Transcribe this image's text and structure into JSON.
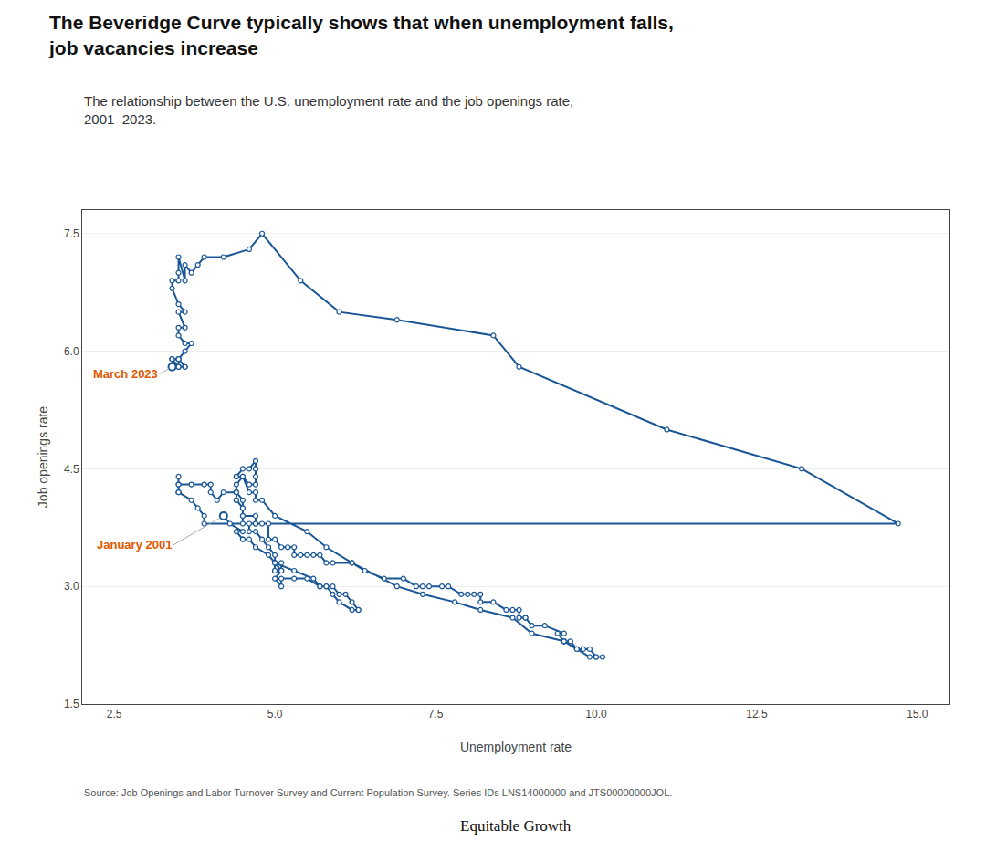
{
  "chart_data": {
    "type": "line",
    "title": "The Beveridge Curve typically shows that when unemployment falls,\njob vacancies increase",
    "subtitle": "The relationship between the U.S. unemployment rate and the job openings rate,\n2001–2023.",
    "xlabel": "Unemployment rate",
    "ylabel": "Job openings rate",
    "source": "Source: Job Openings and Labor Turnover Survey and Current Population Survey. Series IDs LNS14000000 and JTS00000000JOL.",
    "credit": "Equitable Growth",
    "color": "#1a5696",
    "marker": "circle-open",
    "line_style": "solid",
    "grid": "y",
    "xlim": [
      2.0,
      15.5
    ],
    "ylim": [
      1.5,
      7.8
    ],
    "xticks": [
      2.5,
      {
        "value": 5.0,
        "label": "5.0"
      },
      7.5,
      {
        "value": 10.0,
        "label": "10.0"
      },
      12.5,
      {
        "value": 15.0,
        "label": "15.0"
      }
    ],
    "yticks": [
      1.5,
      {
        "value": 3.0,
        "label": "3.0"
      },
      4.5,
      {
        "value": 6.0,
        "label": "6.0"
      },
      7.5
    ],
    "annotations": [
      {
        "text": "March 2023",
        "x": 3.4,
        "y": 5.8,
        "color": "#e05a00"
      },
      {
        "text": "January 2001",
        "x": 4.2,
        "y": 3.9,
        "color": "#e05a00"
      }
    ],
    "x": [
      4.2,
      4.3,
      4.5,
      4.4,
      4.5,
      4.5,
      4.6,
      4.7,
      4.9,
      5.0,
      5.3,
      5.6,
      5.7,
      5.8,
      5.9,
      6.0,
      6.1,
      6.2,
      6.3,
      6.3,
      6.2,
      6.0,
      5.9,
      5.8,
      5.7,
      5.5,
      5.3,
      5.1,
      5.1,
      5.0,
      5.1,
      5.0,
      5.0,
      5.0,
      5.1,
      5.1,
      5.1,
      5.0,
      5.0,
      4.9,
      4.8,
      4.7,
      4.6,
      4.6,
      4.5,
      4.5,
      4.5,
      4.4,
      4.4,
      4.4,
      4.4,
      4.4,
      4.5,
      4.6,
      4.7,
      4.7,
      4.7,
      4.7,
      4.7,
      4.6,
      4.5,
      4.4,
      4.4,
      4.5,
      4.6,
      4.7,
      4.7,
      4.8,
      5.0,
      5.5,
      5.8,
      6.2,
      6.9,
      7.3,
      7.8,
      8.2,
      8.7,
      9.0,
      9.5,
      9.7,
      9.7,
      9.9,
      10.0,
      10.1,
      10.0,
      9.9,
      9.8,
      9.7,
      9.6,
      9.5,
      9.5,
      9.5,
      9.4,
      9.5,
      9.2,
      9.0,
      8.9,
      8.9,
      8.8,
      8.8,
      8.7,
      8.6,
      8.4,
      8.2,
      8.2,
      8.1,
      8.0,
      7.9,
      7.7,
      7.6,
      7.4,
      7.3,
      7.2,
      7.0,
      6.7,
      6.4,
      6.2,
      5.9,
      5.8,
      5.7,
      5.6,
      5.5,
      5.4,
      5.3,
      5.3,
      5.2,
      5.1,
      5.0,
      4.9,
      4.9,
      4.8,
      4.7,
      4.7,
      4.7,
      4.5,
      4.5,
      4.5,
      4.4,
      4.2,
      4.1,
      4.0,
      4.0,
      3.9,
      3.7,
      3.5,
      3.5,
      3.5,
      3.5,
      3.5,
      3.5,
      3.7,
      3.8,
      3.9,
      3.9,
      14.7,
      13.2,
      11.1,
      8.8,
      8.4,
      6.9,
      6.0,
      5.4,
      4.8,
      4.6,
      4.2,
      3.9,
      3.8,
      3.7,
      3.6,
      3.6,
      3.5,
      3.5,
      3.5,
      3.4,
      3.4,
      3.5,
      3.6,
      3.5,
      3.6,
      3.5,
      3.5,
      3.6,
      3.7,
      3.6,
      3.5,
      3.4,
      3.4,
      3.5,
      3.5,
      3.4,
      3.5,
      3.5,
      3.6,
      3.4,
      3.4,
      3.5,
      3.6,
      3.5,
      3.4
    ],
    "values": [
      3.9,
      3.8,
      3.7,
      3.7,
      3.6,
      3.6,
      3.6,
      3.5,
      3.4,
      3.3,
      3.2,
      3.1,
      3.0,
      3.0,
      3.0,
      2.9,
      2.9,
      2.8,
      2.7,
      2.7,
      2.7,
      2.8,
      2.9,
      3.0,
      3.0,
      3.1,
      3.1,
      3.1,
      3.0,
      3.1,
      3.2,
      3.2,
      3.2,
      3.3,
      3.3,
      3.2,
      3.2,
      3.3,
      3.4,
      3.5,
      3.6,
      3.7,
      3.7,
      3.8,
      3.8,
      3.9,
      4.0,
      4.1,
      4.1,
      4.2,
      4.2,
      4.3,
      4.4,
      4.3,
      4.3,
      4.4,
      4.5,
      4.5,
      4.6,
      4.5,
      4.5,
      4.4,
      4.4,
      4.4,
      4.2,
      4.2,
      4.1,
      4.1,
      3.9,
      3.7,
      3.5,
      3.3,
      3.0,
      2.9,
      2.8,
      2.7,
      2.6,
      2.4,
      2.3,
      2.2,
      2.2,
      2.1,
      2.1,
      2.1,
      2.1,
      2.2,
      2.2,
      2.2,
      2.3,
      2.3,
      2.3,
      2.3,
      2.4,
      2.4,
      2.5,
      2.5,
      2.6,
      2.6,
      2.6,
      2.7,
      2.7,
      2.7,
      2.8,
      2.8,
      2.9,
      2.9,
      2.9,
      2.9,
      3.0,
      3.0,
      3.0,
      3.0,
      3.0,
      3.1,
      3.1,
      3.2,
      3.3,
      3.3,
      3.3,
      3.4,
      3.4,
      3.4,
      3.4,
      3.4,
      3.5,
      3.5,
      3.5,
      3.6,
      3.6,
      3.8,
      3.8,
      3.8,
      3.8,
      3.9,
      3.9,
      4.0,
      4.1,
      4.2,
      4.2,
      4.1,
      4.2,
      4.3,
      4.3,
      4.3,
      4.3,
      4.4,
      4.3,
      4.2,
      4.2,
      4.2,
      4.1,
      4.0,
      3.9,
      3.8,
      3.8,
      4.5,
      5.0,
      5.8,
      6.2,
      6.4,
      6.5,
      6.9,
      7.5,
      7.3,
      7.2,
      7.2,
      7.1,
      7.0,
      7.1,
      6.9,
      7.2,
      7.0,
      6.9,
      6.9,
      6.8,
      6.6,
      6.5,
      6.5,
      6.3,
      6.3,
      6.2,
      6.1,
      6.1,
      6.0,
      5.9,
      5.9,
      5.8,
      5.8,
      5.9,
      5.9,
      5.8,
      5.9,
      5.8,
      5.8,
      5.9,
      5.9,
      5.8,
      5.8,
      5.8
    ]
  }
}
